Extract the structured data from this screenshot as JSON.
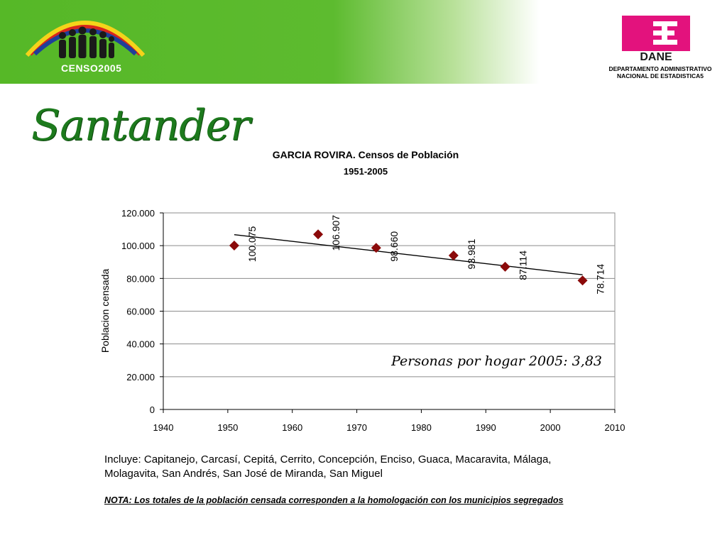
{
  "header": {
    "censo_logo_text": "CENSO2005",
    "dane_logo_text": "DANE",
    "dane_caption_line1": "DEPARTAMENTO ADMINISTRATIVO",
    "dane_caption_line2": "NACIONAL DE ESTADISTICA5"
  },
  "page": {
    "title": "Santander"
  },
  "chart_data": {
    "type": "scatter",
    "title": "GARCIA ROVIRA. Censos de Población",
    "subtitle": "1951-2005",
    "xlabel": "",
    "ylabel": "Poblacion censada",
    "xlim": [
      1940,
      2010
    ],
    "ylim": [
      0,
      120000
    ],
    "x_ticks": [
      "1940",
      "1950",
      "1960",
      "1970",
      "1980",
      "1990",
      "2000",
      "2010"
    ],
    "y_ticks": [
      "0",
      "20.000",
      "40.000",
      "60.000",
      "80.000",
      "100.000",
      "120.000"
    ],
    "grid": true,
    "marker_color": "#8b0a0a",
    "trendline": {
      "type": "linear",
      "color": "#000000"
    },
    "annotation": "Personas por hogar 2005: 3,83",
    "points": [
      {
        "x": 1951,
        "y": 100075,
        "label": "100.075"
      },
      {
        "x": 1964,
        "y": 106907,
        "label": "106.907"
      },
      {
        "x": 1973,
        "y": 98660,
        "label": "98.660"
      },
      {
        "x": 1985,
        "y": 93981,
        "label": "93.981"
      },
      {
        "x": 1993,
        "y": 87114,
        "label": "87.114"
      },
      {
        "x": 2005,
        "y": 78714,
        "label": "78.714"
      }
    ]
  },
  "footer": {
    "includes_line1": "Incluye: Capitanejo, Carcasí, Cepitá, Cerrito, Concepción, Enciso, Guaca, Macaravita, Málaga,",
    "includes_line2": "Molagavita, San Andrés, San José de Miranda, San Miguel",
    "note": "NOTA: Los totales de la población censada corresponden a la homologación con los municipios segregados"
  },
  "colors": {
    "banner_green": "#56b827",
    "title_green": "#1d7a1d",
    "dane_pink": "#e3127d"
  }
}
